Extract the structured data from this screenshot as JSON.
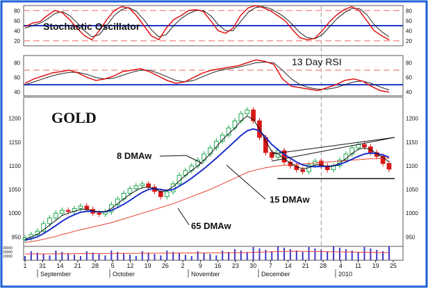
{
  "chart_data": {
    "type": "line",
    "title": "GOLD",
    "colors": {
      "frame_blue": "#1f5fd6",
      "signal_blue": "#1a35c8",
      "oscillator_red": "#e01010",
      "signal_black": "#222222",
      "guide_pink": "#ee9a9a",
      "up_candle": "#1aa84a",
      "down_candle": "#d81818",
      "dma8": "#111111",
      "dma15": "#1a2ecc",
      "dma65": "#e84030",
      "volume": "#3a36c8"
    },
    "stochastic": {
      "label": "Stochastic Oscillator",
      "ticks": [
        80,
        60,
        40,
        20
      ],
      "ylim": [
        10,
        90
      ],
      "lines": [
        80,
        20
      ],
      "midline": 50,
      "k": [
        48,
        55,
        58,
        70,
        80,
        76,
        62,
        45,
        30,
        22,
        40,
        62,
        80,
        88,
        85,
        70,
        50,
        30,
        22,
        45,
        62,
        70,
        80,
        82,
        78,
        60,
        40,
        35,
        45,
        70,
        85,
        90,
        86,
        80,
        70,
        60,
        42,
        26,
        22,
        25,
        40,
        58,
        72,
        82,
        88,
        80,
        60,
        40,
        30,
        22
      ],
      "d": [
        45,
        50,
        55,
        63,
        74,
        78,
        70,
        56,
        40,
        28,
        32,
        50,
        70,
        82,
        86,
        78,
        62,
        42,
        28,
        32,
        50,
        64,
        74,
        80,
        80,
        70,
        52,
        40,
        40,
        58,
        76,
        86,
        88,
        84,
        76,
        66,
        52,
        36,
        26,
        24,
        32,
        48,
        64,
        76,
        84,
        84,
        72,
        52,
        38,
        28
      ]
    },
    "rsi": {
      "label": "13 Day RSI",
      "ticks": [
        80,
        60,
        40
      ],
      "ylim": [
        35,
        90
      ],
      "lines": [
        70
      ],
      "midline": 50,
      "rsi": [
        52,
        58,
        62,
        66,
        68,
        70,
        66,
        60,
        56,
        58,
        62,
        68,
        70,
        72,
        68,
        62,
        56,
        52,
        54,
        60,
        66,
        70,
        72,
        74,
        76,
        80,
        84,
        82,
        78,
        58,
        48,
        46,
        44,
        42,
        46,
        50,
        56,
        58,
        55,
        48,
        42,
        40
      ],
      "signal": [
        50,
        54,
        58,
        62,
        65,
        67,
        67,
        64,
        60,
        58,
        59,
        63,
        67,
        70,
        70,
        66,
        61,
        56,
        54,
        56,
        61,
        66,
        70,
        72,
        74,
        77,
        80,
        81,
        80,
        70,
        58,
        50,
        46,
        44,
        44,
        46,
        50,
        54,
        55,
        52,
        47,
        43
      ]
    },
    "price": {
      "yticks": [
        950,
        1000,
        1050,
        1100,
        1150,
        1200
      ],
      "ylim": [
        930,
        1245
      ],
      "x_labels": [
        "1",
        "31",
        "14",
        "21",
        "28",
        "5",
        "12",
        "19",
        "26",
        "2",
        "9",
        "16",
        "23",
        "30",
        "7",
        "14",
        "21",
        "28",
        "4",
        "11",
        "19",
        "25"
      ],
      "months": [
        "September",
        "October",
        "November",
        "December",
        "2010"
      ],
      "close": [
        948,
        955,
        962,
        978,
        990,
        1000,
        1006,
        1004,
        1010,
        1015,
        1008,
        1000,
        998,
        1003,
        1018,
        1030,
        1042,
        1052,
        1058,
        1062,
        1055,
        1046,
        1035,
        1045,
        1062,
        1080,
        1090,
        1100,
        1112,
        1125,
        1138,
        1152,
        1165,
        1180,
        1195,
        1210,
        1218,
        1195,
        1160,
        1128,
        1118,
        1132,
        1108,
        1100,
        1092,
        1088,
        1102,
        1110,
        1100,
        1092,
        1100,
        1112,
        1125,
        1138,
        1145,
        1140,
        1128,
        1120,
        1105,
        1093
      ],
      "dma8": [
        945,
        950,
        955,
        965,
        975,
        985,
        995,
        1000,
        1004,
        1008,
        1008,
        1005,
        1002,
        1003,
        1010,
        1020,
        1030,
        1040,
        1048,
        1054,
        1055,
        1052,
        1045,
        1048,
        1056,
        1068,
        1080,
        1090,
        1100,
        1112,
        1125,
        1140,
        1155,
        1168,
        1180,
        1195,
        1205,
        1198,
        1178,
        1152,
        1130,
        1125,
        1115,
        1106,
        1098,
        1094,
        1096,
        1102,
        1102,
        1098,
        1100,
        1106,
        1115,
        1126,
        1135,
        1138,
        1134,
        1126,
        1118,
        1108
      ],
      "dma15": [
        943,
        946,
        950,
        957,
        965,
        974,
        983,
        991,
        997,
        1002,
        1004,
        1004,
        1003,
        1003,
        1006,
        1012,
        1019,
        1027,
        1036,
        1044,
        1050,
        1052,
        1050,
        1048,
        1050,
        1057,
        1065,
        1074,
        1084,
        1094,
        1105,
        1116,
        1128,
        1140,
        1152,
        1164,
        1174,
        1178,
        1174,
        1160,
        1145,
        1134,
        1124,
        1116,
        1108,
        1102,
        1099,
        1098,
        1099,
        1099,
        1100,
        1103,
        1108,
        1114,
        1120,
        1125,
        1127,
        1126,
        1123,
        1118
      ],
      "dma65": [
        938,
        940,
        942,
        945,
        948,
        951,
        955,
        958,
        962,
        965,
        968,
        971,
        974,
        977,
        980,
        984,
        988,
        992,
        996,
        1000,
        1004,
        1008,
        1012,
        1016,
        1020,
        1025,
        1030,
        1035,
        1040,
        1045,
        1050,
        1056,
        1062,
        1068,
        1074,
        1080,
        1086,
        1090,
        1093,
        1096,
        1098,
        1100,
        1101,
        1102,
        1103,
        1104,
        1105,
        1106,
        1107,
        1108,
        1109,
        1110,
        1111,
        1112,
        1113,
        1114,
        1115,
        1115,
        1116,
        1116
      ],
      "annotations": [
        "8 DMAw",
        "15 DMAw",
        "65 DMAw"
      ],
      "channel": {
        "upper": [
          [
            1125,
            1110
          ],
          [
            1160,
            1160
          ]
        ],
        "lower": [
          [
            1073,
            1073
          ]
        ]
      }
    },
    "volume": {
      "yticks": [
        "30000",
        "20000",
        "10000"
      ]
    }
  }
}
